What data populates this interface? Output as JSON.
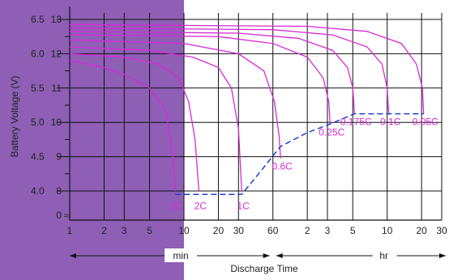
{
  "chart_data": {
    "type": "line",
    "title": "",
    "xlabel": "Discharge Time",
    "ylabel": "Battery Voltage (V)",
    "x_scale": "log",
    "x_unit_labels": {
      "min": "min",
      "hr": "hr"
    },
    "x_ticks": [
      {
        "label": "1",
        "minutes": 1
      },
      {
        "label": "2",
        "minutes": 2
      },
      {
        "label": "3",
        "minutes": 3
      },
      {
        "label": "5",
        "minutes": 5
      },
      {
        "label": "10",
        "minutes": 10
      },
      {
        "label": "20",
        "minutes": 20
      },
      {
        "label": "30",
        "minutes": 30
      },
      {
        "label": "60",
        "minutes": 60
      },
      {
        "label": "2",
        "minutes": 120
      },
      {
        "label": "3",
        "minutes": 180
      },
      {
        "label": "5",
        "minutes": 300
      },
      {
        "label": "10",
        "minutes": 600
      },
      {
        "label": "20",
        "minutes": 1200
      },
      {
        "label": "30",
        "minutes": 1800
      }
    ],
    "y_ticks_cell": [
      {
        "label": "6.5",
        "value": 6.5
      },
      {
        "label": "6.0",
        "value": 6.0
      },
      {
        "label": "5.5",
        "value": 5.5
      },
      {
        "label": "5.0",
        "value": 5.0
      },
      {
        "label": "4.5",
        "value": 4.5
      },
      {
        "label": "4.0",
        "value": 4.0
      }
    ],
    "y_ticks_battery": [
      {
        "label": "13",
        "value": 13
      },
      {
        "label": "12",
        "value": 12
      },
      {
        "label": "11",
        "value": 11
      },
      {
        "label": "10",
        "value": 10
      },
      {
        "label": "9",
        "value": 9
      },
      {
        "label": "8",
        "value": 8
      },
      {
        "label": "0",
        "value": 0
      }
    ],
    "ylim": [
      7,
      13.4
    ],
    "axis_break_symbol": "≈",
    "grid": true,
    "shaded_region": {
      "from_minutes": 1,
      "to_minutes": 10,
      "color": "#8e5fb5"
    },
    "series_color": "#d62ad6",
    "series": [
      {
        "name": "3C",
        "label_at": [
          8.4,
          7.8
        ],
        "points": [
          [
            1,
            11.8
          ],
          [
            2,
            11.6
          ],
          [
            3,
            11.4
          ],
          [
            5,
            11.0
          ],
          [
            7,
            10.3
          ],
          [
            8,
            9.0
          ],
          [
            8.4,
            8.0
          ]
        ]
      },
      {
        "name": "2C",
        "label_at": [
          13.5,
          7.8
        ],
        "points": [
          [
            1,
            12.0
          ],
          [
            3,
            11.9
          ],
          [
            6,
            11.7
          ],
          [
            9,
            11.3
          ],
          [
            11,
            10.6
          ],
          [
            12.5,
            9.5
          ],
          [
            13.5,
            8.0
          ]
        ]
      },
      {
        "name": "1C",
        "label_at": [
          32,
          7.8
        ],
        "points": [
          [
            1,
            12.2
          ],
          [
            5,
            12.1
          ],
          [
            12,
            11.9
          ],
          [
            20,
            11.6
          ],
          [
            26,
            11.0
          ],
          [
            30,
            9.8
          ],
          [
            32,
            8.0
          ]
        ]
      },
      {
        "name": "0.6C",
        "label_at": [
          70,
          8.95
        ],
        "points": [
          [
            1,
            12.4
          ],
          [
            10,
            12.3
          ],
          [
            30,
            12.0
          ],
          [
            50,
            11.5
          ],
          [
            62,
            10.6
          ],
          [
            68,
            9.6
          ],
          [
            70,
            8.95
          ]
        ]
      },
      {
        "name": "0.25C",
        "label_at": [
          190,
          9.95
        ],
        "points": [
          [
            1,
            12.55
          ],
          [
            20,
            12.5
          ],
          [
            60,
            12.3
          ],
          [
            120,
            11.9
          ],
          [
            165,
            11.3
          ],
          [
            185,
            10.6
          ],
          [
            190,
            9.95
          ]
        ]
      },
      {
        "name": "0.175C",
        "label_at": [
          310,
          10.25
        ],
        "points": [
          [
            1,
            12.65
          ],
          [
            30,
            12.6
          ],
          [
            100,
            12.45
          ],
          [
            200,
            12.1
          ],
          [
            270,
            11.6
          ],
          [
            300,
            11.0
          ],
          [
            310,
            10.25
          ]
        ]
      },
      {
        "name": "0.1C",
        "label_at": [
          620,
          10.25
        ],
        "points": [
          [
            1,
            12.75
          ],
          [
            60,
            12.7
          ],
          [
            200,
            12.55
          ],
          [
            400,
            12.2
          ],
          [
            540,
            11.7
          ],
          [
            600,
            11.0
          ],
          [
            620,
            10.25
          ]
        ]
      },
      {
        "name": "0.05C",
        "label_at": [
          1250,
          10.25
        ],
        "points": [
          [
            1,
            12.85
          ],
          [
            120,
            12.8
          ],
          [
            400,
            12.65
          ],
          [
            800,
            12.3
          ],
          [
            1080,
            11.7
          ],
          [
            1220,
            11.0
          ],
          [
            1250,
            10.25
          ]
        ]
      }
    ],
    "end_voltage_line": {
      "color": "#1f3fd6",
      "style": "dashed",
      "points": [
        [
          8.4,
          7.9
        ],
        [
          32,
          7.9
        ],
        [
          45,
          8.5
        ],
        [
          70,
          9.3
        ],
        [
          120,
          9.7
        ],
        [
          190,
          9.95
        ],
        [
          310,
          10.25
        ],
        [
          1250,
          10.25
        ]
      ]
    }
  }
}
